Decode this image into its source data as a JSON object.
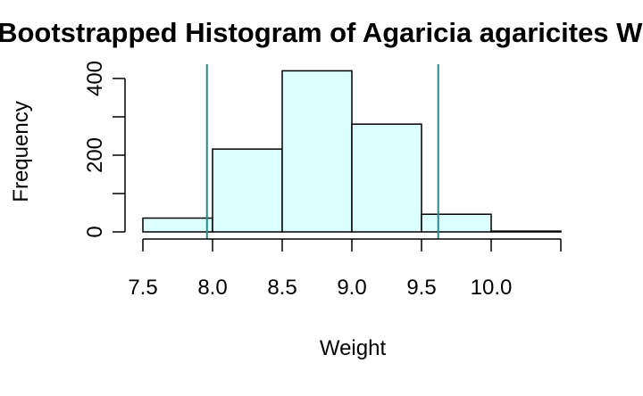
{
  "chart_data": {
    "type": "bar",
    "title": "Bootstrapped Histogram of Agaricia agaricites Weight",
    "xlabel": "Weight",
    "ylabel": "Frequency",
    "bin_edges": [
      7.5,
      8.0,
      8.5,
      9.0,
      9.5,
      10.0,
      10.5
    ],
    "values": [
      36,
      216,
      420,
      281,
      46,
      2
    ],
    "xlim": [
      7.5,
      10.5
    ],
    "ylim": [
      0,
      440
    ],
    "x_ticks": [
      7.5,
      8.0,
      8.5,
      9.0,
      9.5,
      10.0,
      10.5
    ],
    "x_tick_labels": [
      "7.5",
      "8.0",
      "8.5",
      "9.0",
      "9.5",
      "10.0",
      ""
    ],
    "y_ticks": [
      0,
      100,
      200,
      300,
      400
    ],
    "y_tick_labels": [
      "0",
      "",
      "200",
      "",
      "400"
    ],
    "reference_lines": [
      7.96,
      9.62
    ],
    "colors": {
      "bar_fill": "#dcffff",
      "bar_stroke": "#000000",
      "reference_line": "#2a8a8a"
    },
    "grid": false,
    "legend": "none"
  }
}
